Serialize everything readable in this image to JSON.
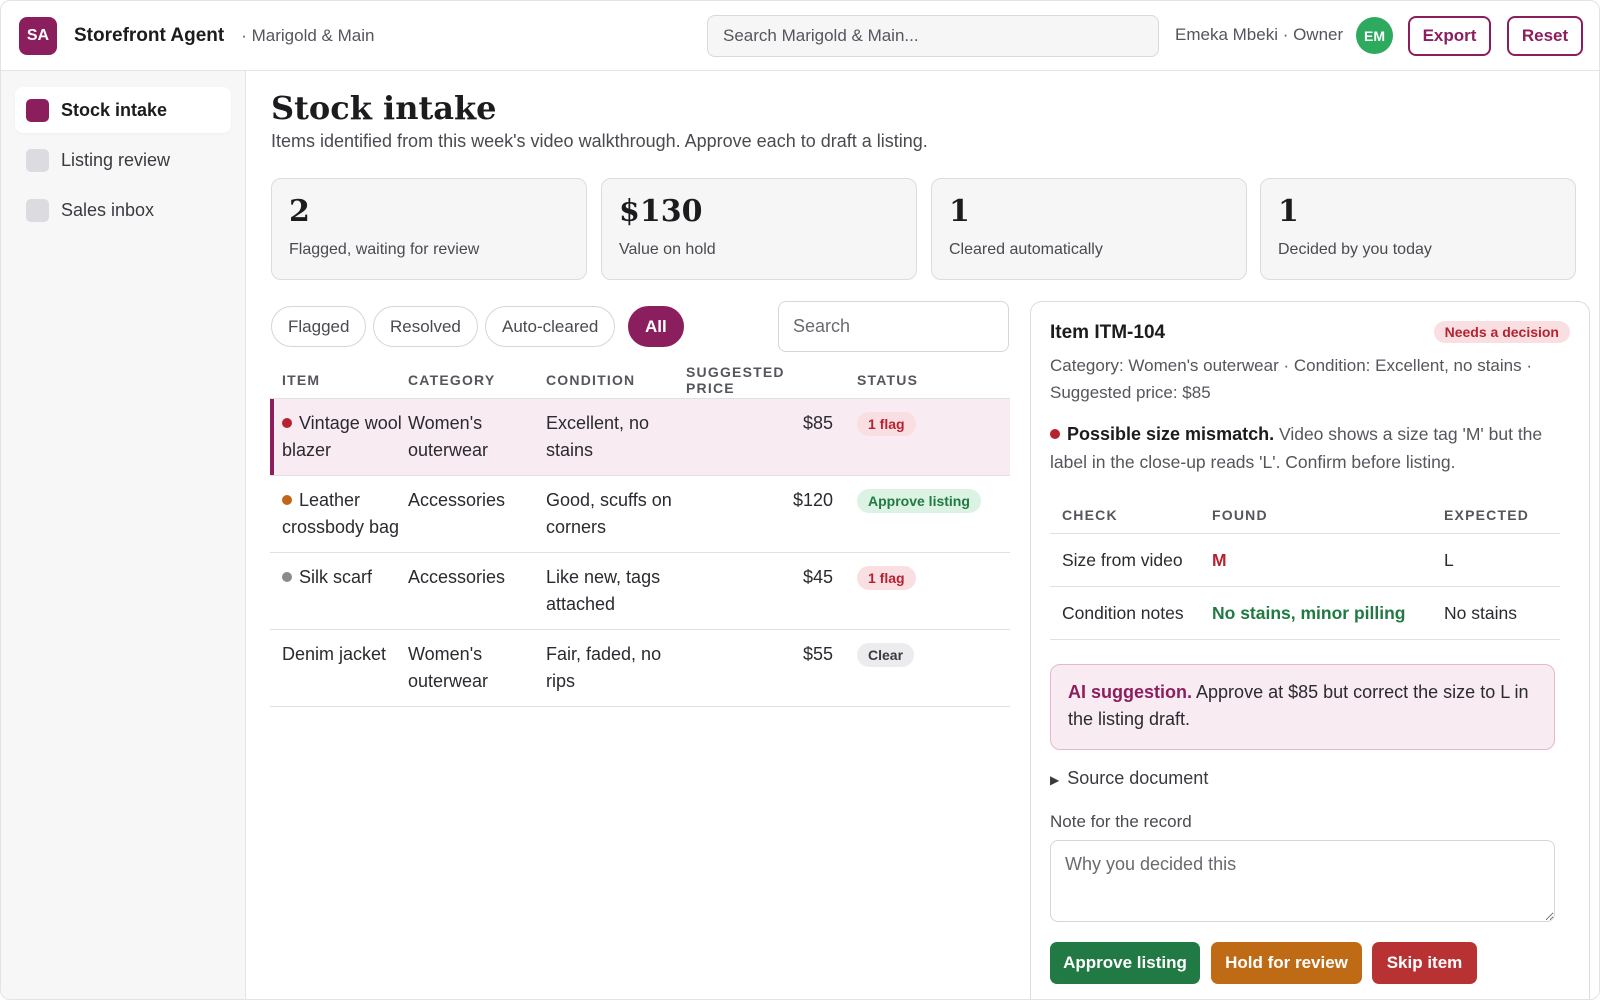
{
  "brand": {
    "logo_initials": "SA",
    "app_name": "Storefront Agent",
    "store": "· Marigold & Main",
    "accent": "#8b1f5e"
  },
  "topbar": {
    "search_placeholder": "Search Marigold & Main...",
    "user": "Emeka Mbeki · Owner",
    "avatar_initials": "EM",
    "export_label": "Export",
    "reset_label": "Reset"
  },
  "sidebar": {
    "items": [
      {
        "label": "Stock intake",
        "active": true
      },
      {
        "label": "Listing review",
        "active": false
      },
      {
        "label": "Sales inbox",
        "active": false
      }
    ]
  },
  "page": {
    "title": "Stock intake",
    "subtitle": "Items identified from this week's video walkthrough. Approve each to draft a listing."
  },
  "stats": [
    {
      "value": "2",
      "label": "Flagged, waiting for review"
    },
    {
      "value": "$130",
      "label": "Value on hold"
    },
    {
      "value": "1",
      "label": "Cleared automatically"
    },
    {
      "value": "1",
      "label": "Decided by you today"
    }
  ],
  "filters": {
    "chips": [
      "Flagged",
      "Resolved",
      "Auto-cleared",
      "All"
    ],
    "active": "All",
    "search_placeholder": "Search"
  },
  "table": {
    "headers": [
      "ITEM",
      "CATEGORY",
      "CONDITION",
      "SUGGESTED PRICE",
      "STATUS"
    ],
    "rows": [
      {
        "item": "Vintage wool blazer",
        "category": "Women's outerwear",
        "condition": "Excellent, no stains",
        "price": "$85",
        "status": "1 flag",
        "dot": "#b4232f",
        "selected": true
      },
      {
        "item": "Leather crossbody bag",
        "category": "Accessories",
        "condition": "Good, scuffs on corners",
        "price": "$120",
        "status": "Approve listing",
        "dot": "#c0661a",
        "selected": false
      },
      {
        "item": "Silk scarf",
        "category": "Accessories",
        "condition": "Like new, tags attached",
        "price": "$45",
        "status": "1 flag",
        "dot": "#8a8a90",
        "selected": false
      },
      {
        "item": "Denim jacket",
        "category": "Women's outerwear",
        "condition": "Fair, faded, no rips",
        "price": "$55",
        "status": "Clear",
        "dot": "",
        "selected": false
      }
    ]
  },
  "detail": {
    "title": "Item ITM-104",
    "badge": "Needs a decision",
    "meta": "Category: Women's outerwear · Condition: Excellent, no stains · Suggested price: $85",
    "issue_title": "Possible size mismatch.",
    "issue_text": "Video shows a size tag 'M' but the label in the close-up reads 'L'. Confirm before listing.",
    "checks_headers": [
      "CHECK",
      "FOUND",
      "EXPECTED"
    ],
    "checks": [
      {
        "check": "Size from video",
        "found": "M",
        "expected": "L"
      },
      {
        "check": "Condition notes",
        "found": "No stains, minor pilling",
        "expected": "No stains"
      }
    ],
    "ai_label": "AI suggestion.",
    "ai_text": "Approve at $85 but correct the size to L in the listing draft.",
    "source_label": "Source document",
    "note_label": "Note for the record",
    "note_placeholder": "Why you decided this",
    "approve_label": "Approve listing",
    "hold_label": "Hold for review",
    "skip_label": "Skip item"
  }
}
